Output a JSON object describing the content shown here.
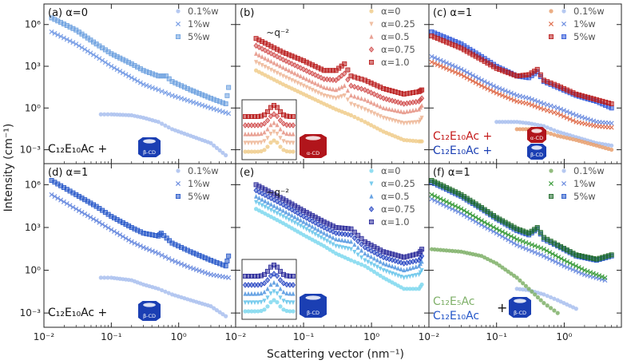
{
  "figure": {
    "ylabel": "Intensity  (cm⁻¹)",
    "xlabel": "Scattering vector  (nm⁻¹)",
    "x_tick_labels": [
      "10⁻²",
      "10⁻¹",
      "10⁰"
    ],
    "y_tick_labels": [
      "10⁶",
      "10³",
      "10⁰",
      "10⁻³"
    ]
  },
  "chart_data": [
    {
      "panel": "a",
      "type": "scatter",
      "title": "(a) α=0",
      "xscale": "log",
      "yscale": "log",
      "xlim": [
        0.01,
        7
      ],
      "ylim": [
        0.0001,
        30000000
      ],
      "series": [
        {
          "name": "0.1%w",
          "color": "#a9bfee",
          "marker": "circle",
          "x": [
            0.07,
            0.1,
            0.2,
            0.3,
            0.5,
            0.8,
            1.5,
            3,
            5
          ],
          "y": [
            0.35,
            0.35,
            0.3,
            0.2,
            0.1,
            0.03,
            0.01,
            0.003,
            0.0004
          ]
        },
        {
          "name": "1%w",
          "color": "#7a9fe6",
          "marker": "x",
          "x": [
            0.013,
            0.03,
            0.06,
            0.1,
            0.2,
            0.3,
            0.5,
            0.8,
            1.5,
            3,
            5.5
          ],
          "y": [
            300000,
            40000,
            5000,
            1000,
            150,
            50,
            20,
            8,
            3,
            1,
            0.4
          ]
        },
        {
          "name": "5%w",
          "color": "#6a9fdf",
          "marker": "square",
          "x": [
            0.013,
            0.03,
            0.06,
            0.1,
            0.2,
            0.3,
            0.5,
            0.65,
            0.8,
            1.5,
            3,
            5,
            5.5
          ],
          "y": [
            3000000,
            400000,
            40000,
            8000,
            1500,
            500,
            200,
            200,
            80,
            20,
            5,
            2,
            30
          ]
        }
      ],
      "annotation": {
        "molecule": "C12E10Ac",
        "complex": "β-CD"
      }
    },
    {
      "panel": "b",
      "type": "scatter",
      "title": "(b)",
      "xscale": "log",
      "yscale": "log",
      "xlim": [
        0.01,
        7
      ],
      "ylim": [
        0.0001,
        30000000
      ],
      "series": [
        {
          "name": "α=0",
          "color": "#f0cd8c",
          "marker": "circle",
          "x": [
            0.02,
            0.05,
            0.1,
            0.2,
            0.3,
            0.5,
            0.8,
            1.5,
            3,
            5,
            5.5
          ],
          "y": [
            500,
            50,
            10,
            2,
            0.8,
            0.3,
            0.1,
            0.02,
            0.005,
            0.004,
            0.004
          ]
        },
        {
          "name": "α=0.25",
          "color": "#e9a57e",
          "marker": "triangle-down",
          "x": [
            0.02,
            0.05,
            0.1,
            0.2,
            0.3,
            0.4,
            0.5,
            0.8,
            1.5,
            3,
            5,
            5.5
          ],
          "y": [
            2000,
            200,
            40,
            8,
            5,
            8,
            2,
            0.8,
            0.2,
            0.08,
            0.1,
            0.2
          ]
        },
        {
          "name": "α=0.5",
          "color": "#df7a68",
          "marker": "triangle-up",
          "x": [
            0.02,
            0.05,
            0.1,
            0.2,
            0.3,
            0.4,
            0.5,
            0.8,
            1.5,
            3,
            5,
            5.5
          ],
          "y": [
            8000,
            800,
            150,
            30,
            20,
            40,
            8,
            4,
            1,
            0.5,
            0.8,
            1.5
          ]
        },
        {
          "name": "α=0.75",
          "color": "#cf4848",
          "marker": "diamond",
          "x": [
            0.02,
            0.05,
            0.1,
            0.2,
            0.3,
            0.4,
            0.5,
            0.8,
            1.5,
            3,
            5,
            5.5
          ],
          "y": [
            30000,
            3000,
            600,
            120,
            100,
            300,
            40,
            20,
            5,
            2,
            3,
            5
          ]
        },
        {
          "name": "α=1.0",
          "color": "#b91c1c",
          "marker": "square",
          "x": [
            0.02,
            0.05,
            0.1,
            0.2,
            0.3,
            0.4,
            0.5,
            0.8,
            1.5,
            3,
            5,
            5.5
          ],
          "y": [
            100000,
            10000,
            2500,
            500,
            500,
            1500,
            200,
            100,
            25,
            10,
            15,
            20
          ]
        }
      ],
      "annotation": {
        "slope_label": "~q⁻²",
        "complex": "α-CD"
      }
    },
    {
      "panel": "c",
      "type": "scatter",
      "title": "(c) α=1",
      "xscale": "log",
      "yscale": "log",
      "xlim": [
        0.01,
        7
      ],
      "ylim": [
        0.0001,
        30000000
      ],
      "series": [
        {
          "name": "0.1%w",
          "color": "#a9bfee",
          "marker": "circle",
          "x": [
            0.1,
            0.2,
            0.3,
            0.5,
            0.8,
            1.5,
            3,
            5
          ],
          "y": [
            0.1,
            0.1,
            0.08,
            0.05,
            0.02,
            0.008,
            0.003,
            0.002
          ]
        },
        {
          "name": "1%w",
          "color": "#6f8fe0",
          "marker": "x",
          "x": [
            0.011,
            0.03,
            0.06,
            0.1,
            0.2,
            0.3,
            0.5,
            0.8,
            1.5,
            3,
            5
          ],
          "y": [
            5000,
            600,
            100,
            30,
            8,
            5,
            2,
            1,
            0.3,
            0.1,
            0.08
          ]
        },
        {
          "name": "5%w",
          "color": "#2f57d8",
          "marker": "square",
          "x": [
            0.011,
            0.03,
            0.06,
            0.1,
            0.2,
            0.3,
            0.4,
            0.5,
            0.8,
            1.5,
            3,
            5
          ],
          "y": [
            300000,
            40000,
            5000,
            1000,
            200,
            150,
            400,
            80,
            30,
            8,
            3,
            1
          ]
        },
        {
          "name": "0.1%w α-CD",
          "color": "#e8a070",
          "marker": "circle",
          "x": [
            0.2,
            0.3,
            0.5,
            0.8,
            1.5,
            3,
            5
          ],
          "y": [
            0.03,
            0.03,
            0.02,
            0.01,
            0.005,
            0.002,
            0.001
          ]
        },
        {
          "name": "1%w α-CD",
          "color": "#e07050",
          "marker": "x",
          "x": [
            0.011,
            0.03,
            0.06,
            0.1,
            0.2,
            0.3,
            0.5,
            0.8,
            1.5,
            3,
            5
          ],
          "y": [
            2000,
            250,
            40,
            12,
            3,
            2,
            0.8,
            0.4,
            0.1,
            0.05,
            0.04
          ]
        },
        {
          "name": "5%w α-CD",
          "color": "#b91c1c",
          "marker": "square",
          "x": [
            0.011,
            0.03,
            0.06,
            0.1,
            0.2,
            0.3,
            0.4,
            0.5,
            0.8,
            1.5,
            3,
            5
          ],
          "y": [
            150000,
            20000,
            3000,
            700,
            200,
            250,
            600,
            100,
            40,
            10,
            4,
            2
          ]
        }
      ],
      "legend_text": {
        "line1": "C₁₂E₁₀Ac +",
        "line2": "C₁₂E₁₀Ac +",
        "complex1": "α-CD",
        "complex2": "β-CD"
      }
    },
    {
      "panel": "d",
      "type": "scatter",
      "title": "(d) α=1",
      "xscale": "log",
      "yscale": "log",
      "xlim": [
        0.01,
        7
      ],
      "ylim": [
        0.0001,
        30000000
      ],
      "series": [
        {
          "name": "0.1%w",
          "color": "#a9bfee",
          "marker": "circle",
          "x": [
            0.07,
            0.1,
            0.2,
            0.3,
            0.5,
            0.8,
            1.5,
            3,
            5
          ],
          "y": [
            0.3,
            0.3,
            0.2,
            0.1,
            0.05,
            0.02,
            0.008,
            0.003,
            0.0006
          ]
        },
        {
          "name": "1%w",
          "color": "#6f8fe0",
          "marker": "x",
          "x": [
            0.013,
            0.03,
            0.06,
            0.1,
            0.2,
            0.3,
            0.5,
            0.8,
            1.5,
            3,
            5.5
          ],
          "y": [
            200000,
            20000,
            3000,
            700,
            100,
            40,
            15,
            5,
            1.5,
            0.5,
            0.3
          ]
        },
        {
          "name": "5%w",
          "color": "#2456c8",
          "marker": "square",
          "x": [
            0.013,
            0.03,
            0.06,
            0.1,
            0.2,
            0.3,
            0.5,
            0.55,
            0.8,
            1.5,
            3,
            5,
            5.5
          ],
          "y": [
            2000000,
            200000,
            30000,
            6000,
            1000,
            400,
            250,
            400,
            80,
            20,
            5,
            2,
            10
          ]
        }
      ],
      "annotation": {
        "molecule": "C12E10Ac",
        "complex": "β-CD"
      }
    },
    {
      "panel": "e",
      "type": "scatter",
      "title": "(e)",
      "xscale": "log",
      "yscale": "log",
      "xlim": [
        0.01,
        7
      ],
      "ylim": [
        0.0001,
        30000000
      ],
      "series": [
        {
          "name": "α=0",
          "color": "#7fd8ee",
          "marker": "circle",
          "x": [
            0.02,
            0.05,
            0.1,
            0.2,
            0.3,
            0.5,
            0.8,
            1.5,
            3,
            5,
            5.5
          ],
          "y": [
            20000,
            2000,
            300,
            50,
            15,
            5,
            2,
            0.3,
            0.05,
            0.05,
            0.1
          ]
        },
        {
          "name": "α=0.25",
          "color": "#42b7e6",
          "marker": "triangle-down",
          "x": [
            0.02,
            0.05,
            0.1,
            0.2,
            0.3,
            0.5,
            0.8,
            1.5,
            3,
            5,
            5.5
          ],
          "y": [
            60000,
            6000,
            1000,
            150,
            50,
            30,
            5,
            1,
            0.3,
            0.5,
            1
          ]
        },
        {
          "name": "α=0.5",
          "color": "#2a7ed9",
          "marker": "triangle-up",
          "x": [
            0.02,
            0.05,
            0.1,
            0.2,
            0.3,
            0.5,
            0.8,
            1.5,
            3,
            5,
            5.5
          ],
          "y": [
            150000,
            15000,
            2500,
            400,
            150,
            100,
            15,
            3,
            1,
            2,
            4
          ]
        },
        {
          "name": "α=0.75",
          "color": "#1f3fc0",
          "marker": "diamond",
          "x": [
            0.02,
            0.05,
            0.1,
            0.2,
            0.3,
            0.5,
            0.8,
            1.5,
            3,
            5,
            5.5
          ],
          "y": [
            400000,
            40000,
            6000,
            1000,
            400,
            300,
            40,
            8,
            3,
            5,
            10
          ]
        },
        {
          "name": "α=1.0",
          "color": "#2a2a9a",
          "marker": "square",
          "x": [
            0.02,
            0.05,
            0.1,
            0.2,
            0.3,
            0.5,
            0.8,
            1.5,
            3,
            5,
            5.5
          ],
          "y": [
            1000000,
            100000,
            15000,
            2500,
            1000,
            800,
            100,
            20,
            8,
            15,
            30
          ]
        }
      ],
      "annotation": {
        "slope_label": "~q⁻²",
        "complex": "β-CD"
      }
    },
    {
      "panel": "f",
      "type": "scatter",
      "title": "(f) α=1",
      "xscale": "log",
      "yscale": "log",
      "xlim": [
        0.01,
        7
      ],
      "ylim": [
        0.0001,
        30000000
      ],
      "series": [
        {
          "name": "0.1%w",
          "color": "#a9bfee",
          "marker": "circle",
          "x": [
            0.2,
            0.3,
            0.5,
            0.8,
            1.5
          ],
          "y": [
            0.05,
            0.04,
            0.02,
            0.008,
            0.002
          ]
        },
        {
          "name": "1%w",
          "color": "#6f8fe0",
          "marker": "x",
          "x": [
            0.011,
            0.03,
            0.06,
            0.1,
            0.2,
            0.5,
            1,
            2,
            4
          ],
          "y": [
            100000,
            10000,
            1500,
            400,
            60,
            10,
            2,
            0.5,
            0.2
          ]
        },
        {
          "name": "5%w",
          "color": "#2456c8",
          "marker": "square",
          "x": [
            0.011,
            0.03,
            0.06,
            0.1,
            0.2,
            0.3,
            0.4,
            0.5,
            0.8,
            1.5,
            3,
            5
          ],
          "y": [
            1500000,
            150000,
            20000,
            4000,
            600,
            300,
            800,
            150,
            50,
            10,
            5,
            10
          ]
        },
        {
          "name": "0.1%w C12E5Ac",
          "color": "#7fb069",
          "marker": "circle",
          "x": [
            0.011,
            0.03,
            0.06,
            0.1,
            0.2,
            0.3,
            0.5,
            0.8
          ],
          "y": [
            30,
            20,
            10,
            3,
            0.3,
            0.05,
            0.005,
            0.001
          ]
        },
        {
          "name": "1%w C12E5Ac",
          "color": "#3f9e3f",
          "marker": "x",
          "x": [
            0.011,
            0.03,
            0.06,
            0.1,
            0.2,
            0.5,
            1,
            2,
            4
          ],
          "y": [
            200000,
            20000,
            3000,
            800,
            150,
            30,
            5,
            1,
            0.3
          ]
        },
        {
          "name": "5%w C12E5Ac",
          "color": "#1e6b2a",
          "marker": "square",
          "x": [
            0.011,
            0.03,
            0.06,
            0.1,
            0.2,
            0.3,
            0.4,
            0.5,
            0.8,
            1.5,
            3,
            5
          ],
          "y": [
            2000000,
            200000,
            25000,
            5000,
            800,
            400,
            1000,
            200,
            60,
            12,
            6,
            12
          ]
        }
      ],
      "legend_text": {
        "line1": "C₁₂E₅Ac",
        "line2": "C₁₂E₁₀Ac",
        "plus": "+",
        "complex": "β-CD"
      }
    }
  ]
}
